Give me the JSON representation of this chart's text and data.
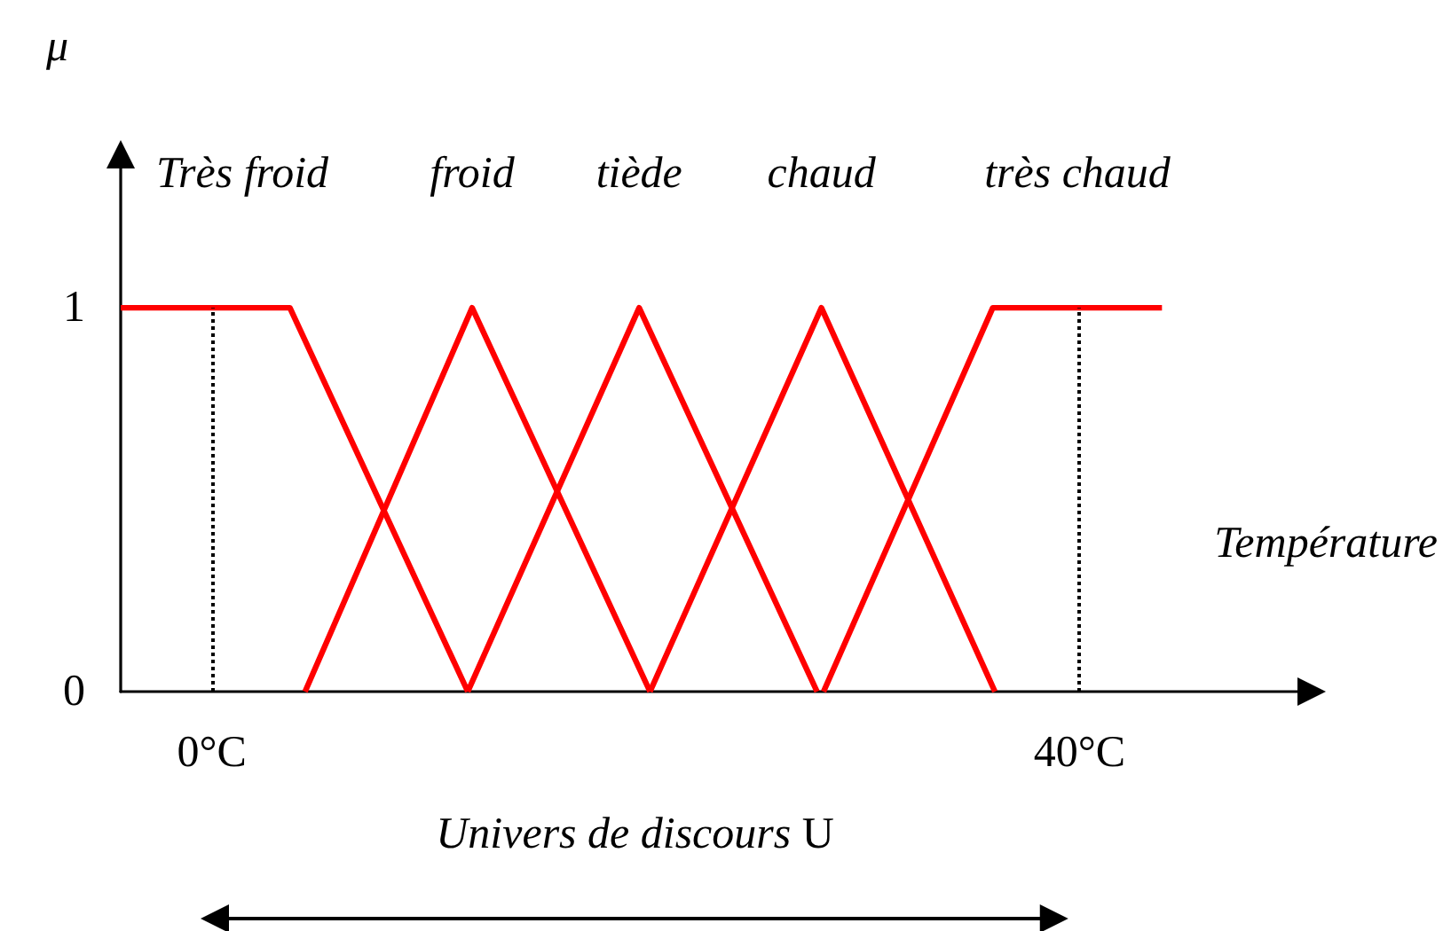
{
  "chart_data": {
    "type": "line",
    "xlabel": "Température",
    "ylabel": "μ",
    "annotations": [
      "Univers de discours U"
    ],
    "xlim": [
      -4.2,
      50.7
    ],
    "xticks": [
      {
        "value": 0,
        "label": "0°C"
      },
      {
        "value": 40,
        "label": "40°C"
      }
    ],
    "ylim": [
      0,
      1.4
    ],
    "yticks": [
      0,
      1
    ],
    "series": [
      {
        "name": "Très froid",
        "color": "#ff0000",
        "x": [
          -4.2,
          3.6,
          11.8
        ],
        "values": [
          1,
          1,
          0
        ]
      },
      {
        "name": "froid",
        "color": "#ff0000",
        "x": [
          4.3,
          12.0,
          20.2
        ],
        "values": [
          0,
          1,
          0
        ]
      },
      {
        "name": "tiède",
        "color": "#ff0000",
        "x": [
          11.8,
          19.7,
          27.9
        ],
        "values": [
          0,
          1,
          0
        ]
      },
      {
        "name": "chaud",
        "color": "#ff0000",
        "x": [
          20.2,
          28.1,
          36.1
        ],
        "values": [
          0,
          1,
          0
        ]
      },
      {
        "name": "très chaud",
        "color": "#ff0000",
        "x": [
          28.2,
          36.0,
          43.8
        ],
        "values": [
          0,
          1,
          1
        ]
      }
    ],
    "ref_lines": [
      {
        "axis": "x",
        "value": 0,
        "color": "#000000",
        "line_style": "dotted"
      },
      {
        "axis": "x",
        "value": 40,
        "color": "#000000",
        "line_style": "dotted"
      }
    ],
    "grid": false,
    "legend": false,
    "marker": "none",
    "line_style": "solid"
  }
}
